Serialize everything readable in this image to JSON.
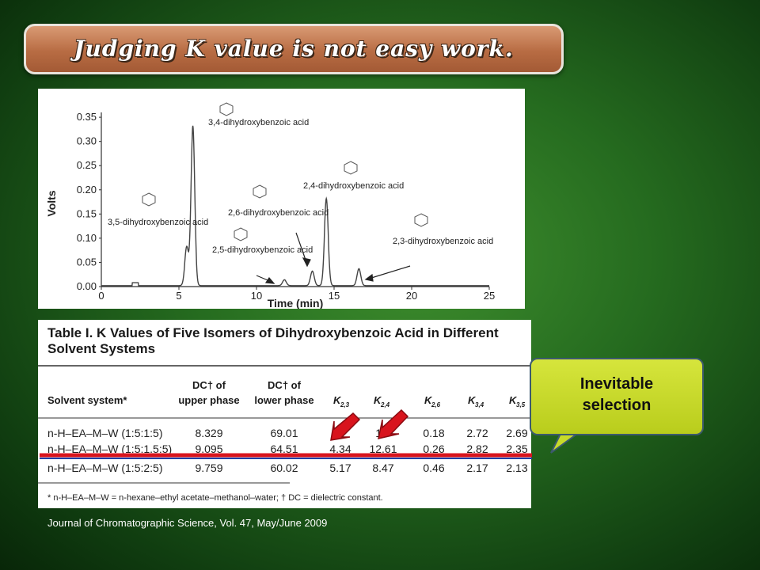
{
  "title": "Judging K value is not easy work.",
  "callout": {
    "line1": "Inevitable",
    "line2": "selection"
  },
  "citation": "Journal of Chromatographic Science, Vol. 47, May/June 2009",
  "chart_data": {
    "type": "line",
    "ylabel": "Volts",
    "xlabel": "Time (min)",
    "xlim": [
      0,
      25
    ],
    "ylim": [
      0,
      0.36
    ],
    "y_ticks": [
      "0.35",
      "0.30",
      "0.25",
      "0.20",
      "0.15",
      "0.10",
      "0.05",
      "0.00"
    ],
    "x_ticks": [
      "0",
      "5",
      "10",
      "15",
      "20",
      "25"
    ],
    "peaks": [
      {
        "x": 5.5,
        "y": 0.08
      },
      {
        "x": 5.9,
        "y": 0.33
      },
      {
        "x": 11.8,
        "y": 0.012
      },
      {
        "x": 13.6,
        "y": 0.03
      },
      {
        "x": 14.5,
        "y": 0.18
      },
      {
        "x": 16.6,
        "y": 0.035
      }
    ],
    "annotations": [
      "3,4-dihydroxybenzoic acid",
      "3,5-dihydroxybenzoic acid",
      "2,4-dihydroxybenzoic acid",
      "2,6-dihydroxybenzoic acid",
      "2,5-dihydroxybenzoic acid",
      "2,3-dihydroxybenzoic acid"
    ]
  },
  "table": {
    "caption_line1": "Table I. K Values of Five Isomers of Dihydroxybenzoic Acid in Different",
    "caption_line2": "Solvent Systems",
    "headers": {
      "solvent": "Solvent system*",
      "dc_upper_1": "DC† of",
      "dc_upper_2": "upper phase",
      "dc_lower_1": "DC† of",
      "dc_lower_2": "lower phase",
      "k23": "K",
      "k23_sub": "2,3",
      "k24": "K",
      "k24_sub": "2,4",
      "k26": "K",
      "k26_sub": "2,6",
      "k34": "K",
      "k34_sub": "3,4",
      "k35": "K",
      "k35_sub": "3,5"
    },
    "rows": [
      {
        "solvent": "n-H–EA–M–W (1:5:1:5)",
        "dc_upper": "8.329",
        "dc_lower": "69.01",
        "k23": "",
        "k24": "18",
        "k26": "0.18",
        "k34": "2.72",
        "k35": "2.69"
      },
      {
        "solvent": "n-H–EA–M–W (1:5:1.5:5)",
        "dc_upper": "9.095",
        "dc_lower": "64.51",
        "k23": "4.34",
        "k24": "12.61",
        "k26": "0.26",
        "k34": "2.82",
        "k35": "2.35"
      },
      {
        "solvent": "n-H–EA–M–W (1:5:2:5)",
        "dc_upper": "9.759",
        "dc_lower": "60.02",
        "k23": "5.17",
        "k24": "8.47",
        "k26": "0.46",
        "k34": "2.17",
        "k35": "2.13"
      }
    ],
    "footnote": "* n-H–EA–M–W = n-hexane–ethyl acetate–methanol–water; † DC = dielectric constant."
  },
  "colors": {
    "highlight_line": "#d8141d",
    "arrow_fill": "#d8141d",
    "callout_fill": "#c8db2a"
  }
}
